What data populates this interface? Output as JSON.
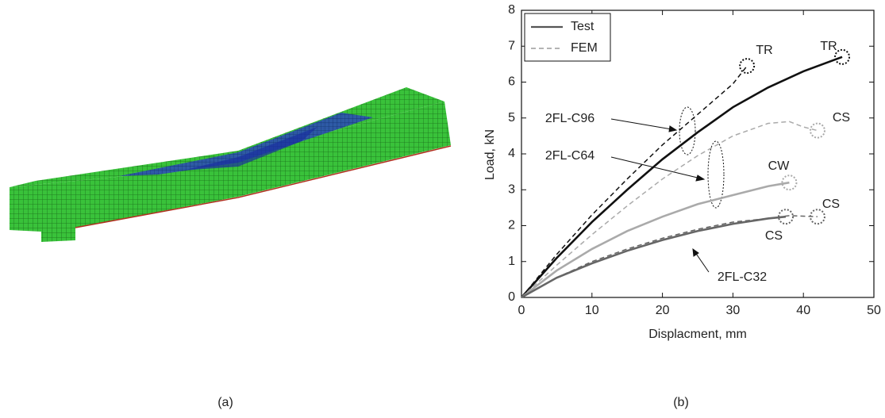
{
  "figure": {
    "panel_labels": [
      "(a)",
      "(b)"
    ]
  },
  "chart_data": {
    "type": "line",
    "xlabel": "Displacment, mm",
    "ylabel": "Load, kN",
    "xlim": [
      0,
      50
    ],
    "ylim": [
      0,
      8
    ],
    "xticks": [
      0,
      10,
      20,
      30,
      40,
      50
    ],
    "yticks": [
      0,
      1,
      2,
      3,
      4,
      5,
      6,
      7,
      8
    ],
    "legend": [
      "Test",
      "FEM"
    ],
    "legend_dashed": [
      false,
      true
    ],
    "legend_loc": "upper left",
    "specimens": [
      "2FL-C96",
      "2FL-C64",
      "2FL-C32"
    ],
    "failure_labels": [
      "TR",
      "TR",
      "CS",
      "CW",
      "CS",
      "CS"
    ],
    "series": [
      {
        "legend": 0,
        "specimen": 0,
        "color": "#111111",
        "failure": 1,
        "x": [
          0,
          5,
          10,
          15,
          20,
          25,
          30,
          35,
          40,
          45.5
        ],
        "values": [
          0,
          1.1,
          2.1,
          3.0,
          3.85,
          4.6,
          5.3,
          5.85,
          6.3,
          6.7
        ]
      },
      {
        "legend": 1,
        "specimen": 0,
        "color": "#111111",
        "failure": 0,
        "x": [
          0,
          5,
          10,
          15,
          20,
          25,
          30,
          32
        ],
        "values": [
          0,
          1.2,
          2.3,
          3.3,
          4.25,
          5.1,
          5.95,
          6.45
        ]
      },
      {
        "legend": 0,
        "specimen": 1,
        "color": "#aaaaaa",
        "failure": 3,
        "x": [
          0,
          5,
          10,
          15,
          20,
          25,
          30,
          35,
          38
        ],
        "values": [
          0,
          0.75,
          1.35,
          1.85,
          2.25,
          2.6,
          2.85,
          3.1,
          3.2
        ]
      },
      {
        "legend": 1,
        "specimen": 1,
        "color": "#aaaaaa",
        "failure": 2,
        "x": [
          0,
          5,
          10,
          15,
          20,
          25,
          30,
          35,
          38,
          40,
          42
        ],
        "values": [
          0,
          0.9,
          1.75,
          2.55,
          3.3,
          3.95,
          4.5,
          4.85,
          4.9,
          4.75,
          4.65
        ]
      },
      {
        "legend": 0,
        "specimen": 2,
        "color": "#666666",
        "failure": 5,
        "x": [
          0,
          5,
          10,
          15,
          20,
          25,
          30,
          35,
          37.5
        ],
        "values": [
          0,
          0.55,
          0.95,
          1.3,
          1.6,
          1.85,
          2.05,
          2.2,
          2.25
        ]
      },
      {
        "legend": 1,
        "specimen": 2,
        "color": "#666666",
        "failure": 4,
        "x": [
          0,
          5,
          10,
          15,
          20,
          25,
          30,
          35,
          38,
          42
        ],
        "values": [
          0,
          0.55,
          1.0,
          1.35,
          1.65,
          1.9,
          2.1,
          2.2,
          2.28,
          2.25
        ]
      }
    ]
  }
}
